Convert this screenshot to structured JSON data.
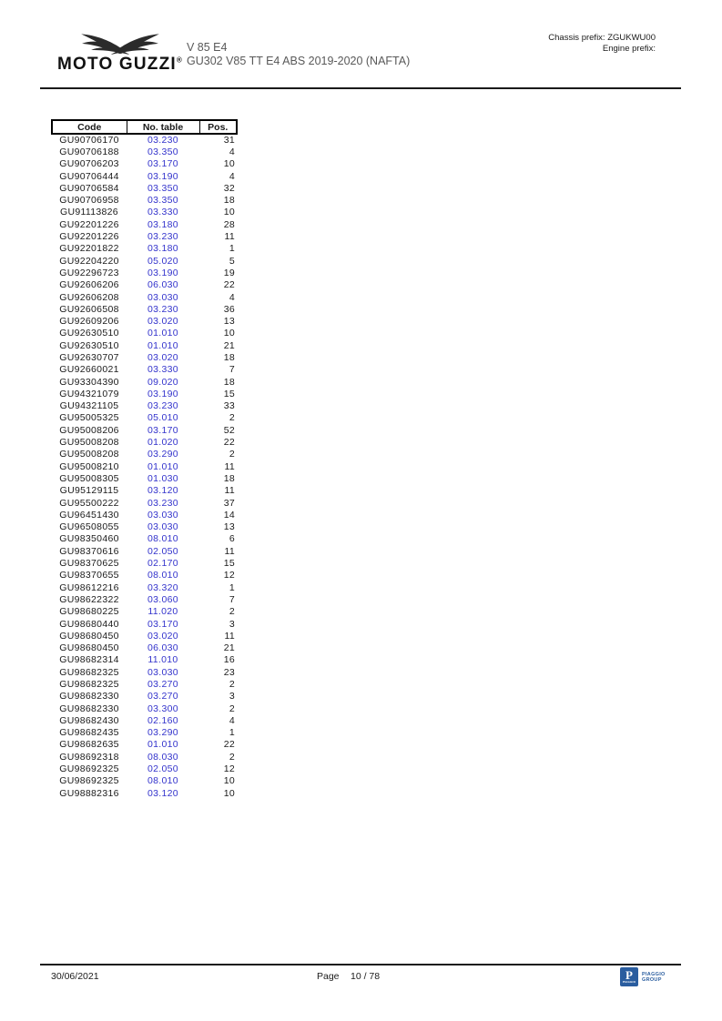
{
  "header": {
    "brand": "MOTO GUZZI",
    "registered": "®",
    "model_line1": "V 85 E4",
    "model_line2": "GU302 V85 TT E4 ABS 2019-2020 (NAFTA)",
    "chassis_prefix": "Chassis prefix: ZGUKWU00",
    "engine_prefix": "Engine prefix:"
  },
  "table": {
    "columns": [
      "Code",
      "No. table",
      "Pos."
    ],
    "rows": [
      [
        "GU90706170",
        "03.230",
        "31"
      ],
      [
        "GU90706188",
        "03.350",
        "4"
      ],
      [
        "GU90706203",
        "03.170",
        "10"
      ],
      [
        "GU90706444",
        "03.190",
        "4"
      ],
      [
        "GU90706584",
        "03.350",
        "32"
      ],
      [
        "GU90706958",
        "03.350",
        "18"
      ],
      [
        "GU91113826",
        "03.330",
        "10"
      ],
      [
        "GU92201226",
        "03.180",
        "28"
      ],
      [
        "GU92201226",
        "03.230",
        "11"
      ],
      [
        "GU92201822",
        "03.180",
        "1"
      ],
      [
        "GU92204220",
        "05.020",
        "5"
      ],
      [
        "GU92296723",
        "03.190",
        "19"
      ],
      [
        "GU92606206",
        "06.030",
        "22"
      ],
      [
        "GU92606208",
        "03.030",
        "4"
      ],
      [
        "GU92606508",
        "03.230",
        "36"
      ],
      [
        "GU92609206",
        "03.020",
        "13"
      ],
      [
        "GU92630510",
        "01.010",
        "10"
      ],
      [
        "GU92630510",
        "01.010",
        "21"
      ],
      [
        "GU92630707",
        "03.020",
        "18"
      ],
      [
        "GU92660021",
        "03.330",
        "7"
      ],
      [
        "GU93304390",
        "09.020",
        "18"
      ],
      [
        "GU94321079",
        "03.190",
        "15"
      ],
      [
        "GU94321105",
        "03.230",
        "33"
      ],
      [
        "GU95005325",
        "05.010",
        "2"
      ],
      [
        "GU95008206",
        "03.170",
        "52"
      ],
      [
        "GU95008208",
        "01.020",
        "22"
      ],
      [
        "GU95008208",
        "03.290",
        "2"
      ],
      [
        "GU95008210",
        "01.010",
        "11"
      ],
      [
        "GU95008305",
        "01.030",
        "18"
      ],
      [
        "GU95129115",
        "03.120",
        "11"
      ],
      [
        "GU95500222",
        "03.230",
        "37"
      ],
      [
        "GU96451430",
        "03.030",
        "14"
      ],
      [
        "GU96508055",
        "03.030",
        "13"
      ],
      [
        "GU98350460",
        "08.010",
        "6"
      ],
      [
        "GU98370616",
        "02.050",
        "11"
      ],
      [
        "GU98370625",
        "02.170",
        "15"
      ],
      [
        "GU98370655",
        "08.010",
        "12"
      ],
      [
        "GU98612216",
        "03.320",
        "1"
      ],
      [
        "GU98622322",
        "03.060",
        "7"
      ],
      [
        "GU98680225",
        "11.020",
        "2"
      ],
      [
        "GU98680440",
        "03.170",
        "3"
      ],
      [
        "GU98680450",
        "03.020",
        "11"
      ],
      [
        "GU98680450",
        "06.030",
        "21"
      ],
      [
        "GU98682314",
        "11.010",
        "16"
      ],
      [
        "GU98682325",
        "03.030",
        "23"
      ],
      [
        "GU98682325",
        "03.270",
        "2"
      ],
      [
        "GU98682330",
        "03.270",
        "3"
      ],
      [
        "GU98682330",
        "03.300",
        "2"
      ],
      [
        "GU98682430",
        "02.160",
        "4"
      ],
      [
        "GU98682435",
        "03.290",
        "1"
      ],
      [
        "GU98682635",
        "01.010",
        "22"
      ],
      [
        "GU98692318",
        "08.030",
        "2"
      ],
      [
        "GU98692325",
        "02.050",
        "12"
      ],
      [
        "GU98692325",
        "08.010",
        "10"
      ],
      [
        "GU98882316",
        "03.120",
        "10"
      ]
    ]
  },
  "footer": {
    "date": "30/06/2021",
    "page_label": "Page",
    "page_value": "10 / 78",
    "logo": {
      "letter": "P",
      "line1": "PIAGGIO",
      "line2": "GROUP"
    }
  },
  "colors": {
    "link_blue": "#3333cc",
    "text_black": "#1a1a1a",
    "header_gray": "#595959",
    "piaggio_blue": "#2a5d9f"
  }
}
